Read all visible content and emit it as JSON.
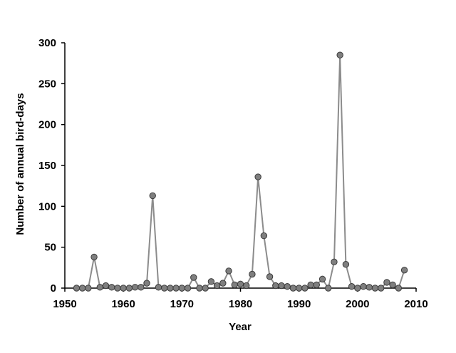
{
  "chart_data": {
    "type": "line",
    "title": "",
    "xlabel": "Year",
    "ylabel": "Number of annual bird-days",
    "xlim": [
      1950,
      2010
    ],
    "ylim": [
      0,
      300
    ],
    "x_ticks": [
      "1950",
      "1960",
      "1970",
      "1980",
      "1990",
      "2000",
      "2010"
    ],
    "y_ticks": [
      "0",
      "50",
      "100",
      "150",
      "200",
      "250",
      "300"
    ],
    "grid": false,
    "legend": "none",
    "colors": {
      "line": "#8c8c8c",
      "marker_fill": "#7f7f7f",
      "marker_stroke": "#3a3a3a",
      "axis": "#000000"
    },
    "series": [
      {
        "x": [
          1952,
          1953,
          1954,
          1955,
          1956,
          1957,
          1958,
          1959,
          1960,
          1961,
          1962,
          1963,
          1964,
          1965,
          1966,
          1967,
          1968,
          1969,
          1970,
          1971,
          1972,
          1973,
          1974,
          1975,
          1976,
          1977,
          1978,
          1979,
          1980,
          1981,
          1982,
          1983,
          1984,
          1985,
          1986,
          1987,
          1988,
          1989,
          1990,
          1991,
          1992,
          1993,
          1994,
          1995,
          1996,
          1997,
          1998,
          1999,
          2000,
          2001,
          2002,
          2003,
          2004,
          2005,
          2006,
          2007,
          2008
        ],
        "y": [
          0,
          0,
          0,
          38,
          1,
          3,
          1,
          0,
          0,
          0,
          1,
          1,
          6,
          113,
          1,
          0,
          0,
          0,
          0,
          0,
          13,
          0,
          0,
          8,
          3,
          6,
          21,
          4,
          5,
          3,
          17,
          136,
          64,
          14,
          3,
          3,
          2,
          0,
          0,
          0,
          4,
          4,
          11,
          0,
          32,
          285,
          29,
          2,
          0,
          2,
          1,
          0,
          0,
          7,
          4,
          0,
          22
        ]
      }
    ]
  }
}
